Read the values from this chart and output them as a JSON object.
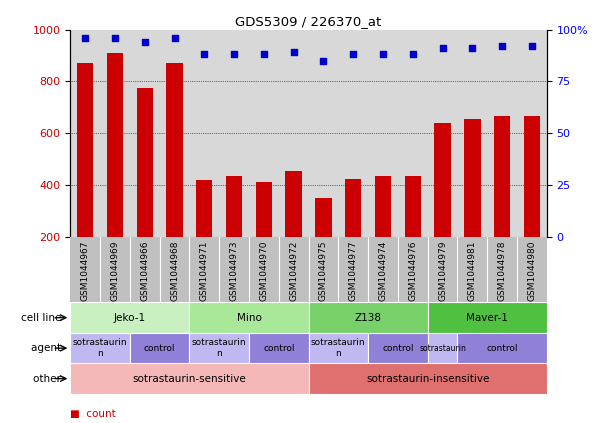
{
  "title": "GDS5309 / 226370_at",
  "samples": [
    "GSM1044967",
    "GSM1044969",
    "GSM1044966",
    "GSM1044968",
    "GSM1044971",
    "GSM1044973",
    "GSM1044970",
    "GSM1044972",
    "GSM1044975",
    "GSM1044977",
    "GSM1044974",
    "GSM1044976",
    "GSM1044979",
    "GSM1044981",
    "GSM1044978",
    "GSM1044980"
  ],
  "counts": [
    870,
    910,
    775,
    870,
    420,
    435,
    410,
    455,
    350,
    425,
    435,
    435,
    640,
    655,
    668,
    668
  ],
  "percentiles": [
    96,
    96,
    94,
    96,
    88,
    88,
    88,
    89,
    85,
    88,
    88,
    88,
    91,
    91,
    92,
    92
  ],
  "cell_lines": [
    {
      "label": "Jeko-1",
      "start": 0,
      "end": 4,
      "color": "#c8f0c0"
    },
    {
      "label": "Mino",
      "start": 4,
      "end": 8,
      "color": "#a8e898"
    },
    {
      "label": "Z138",
      "start": 8,
      "end": 12,
      "color": "#78d068"
    },
    {
      "label": "Maver-1",
      "start": 12,
      "end": 16,
      "color": "#50c040"
    }
  ],
  "agents": [
    {
      "label": "sotrastaurin\nn",
      "start": 0,
      "end": 2,
      "color": "#c0b8f0"
    },
    {
      "label": "control",
      "start": 2,
      "end": 4,
      "color": "#9080d8"
    },
    {
      "label": "sotrastaurin\nn",
      "start": 4,
      "end": 6,
      "color": "#c0b8f0"
    },
    {
      "label": "control",
      "start": 6,
      "end": 8,
      "color": "#9080d8"
    },
    {
      "label": "sotrastaurin\nn",
      "start": 8,
      "end": 10,
      "color": "#c0b8f0"
    },
    {
      "label": "control",
      "start": 10,
      "end": 12,
      "color": "#9080d8"
    },
    {
      "label": "sotrastaurin",
      "start": 12,
      "end": 13,
      "color": "#c0b8f0"
    },
    {
      "label": "control",
      "start": 13,
      "end": 16,
      "color": "#9080d8"
    }
  ],
  "others": [
    {
      "label": "sotrastaurin-sensitive",
      "start": 0,
      "end": 8,
      "color": "#f4b8b8"
    },
    {
      "label": "sotrastaurin-insensitive",
      "start": 8,
      "end": 16,
      "color": "#e07070"
    }
  ],
  "bar_color": "#cc0000",
  "dot_color": "#0000cc",
  "ylim_left": [
    200,
    1000
  ],
  "ylim_right": [
    0,
    100
  ],
  "yticks_left": [
    200,
    400,
    600,
    800,
    1000
  ],
  "yticks_right": [
    0,
    25,
    50,
    75,
    100
  ],
  "plot_bg_color": "#d8d8d8",
  "tick_bg_color": "#c0c0c0"
}
